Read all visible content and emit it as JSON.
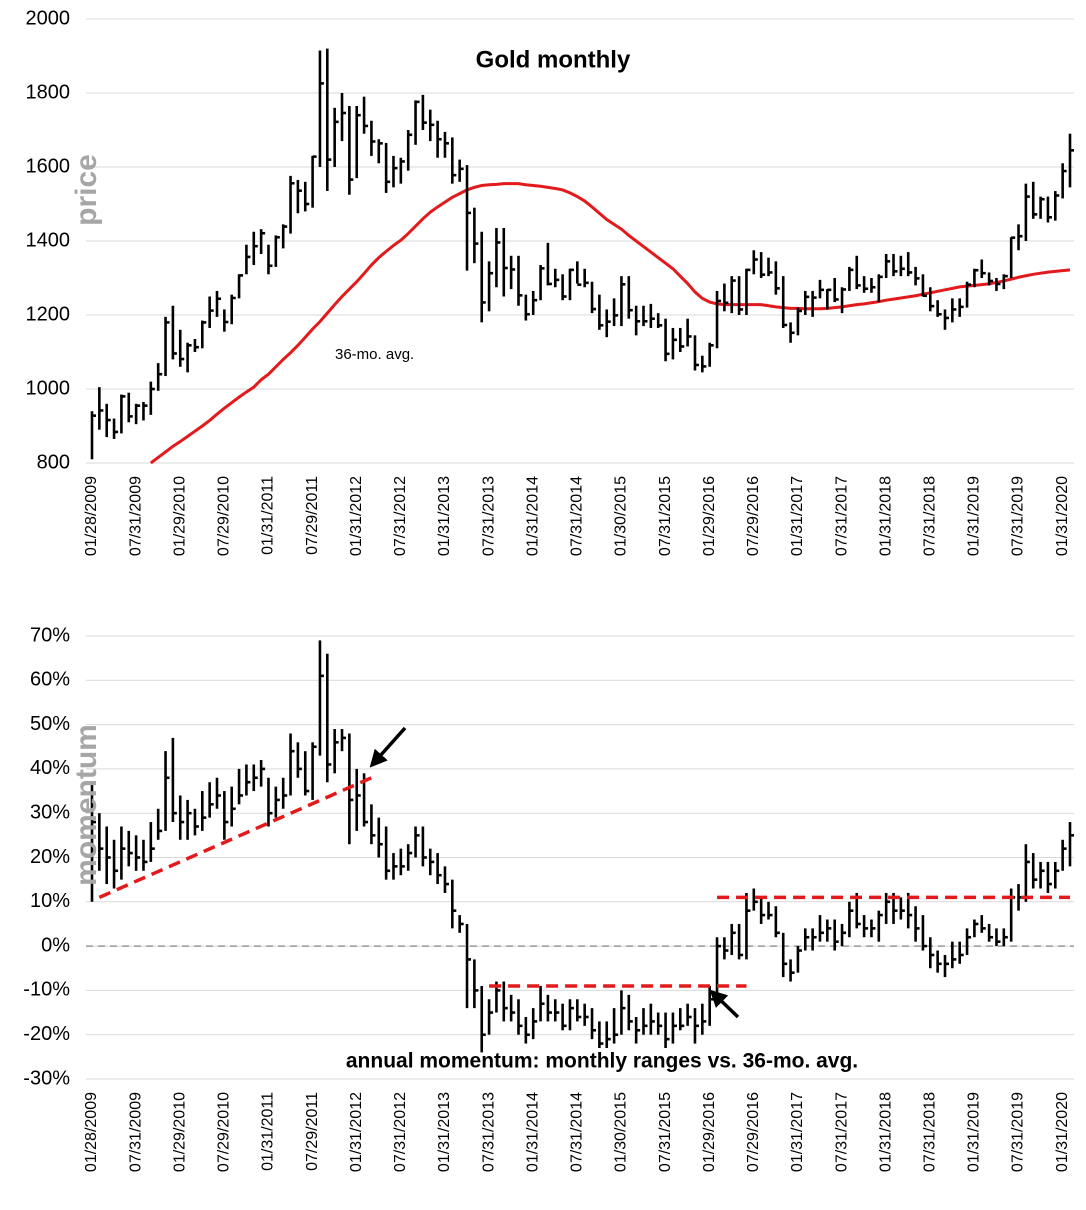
{
  "chart_data": [
    {
      "type": "ohlc",
      "title": "Gold monthly",
      "y_label": "price",
      "categories": [
        "01/28/2009",
        null,
        null,
        null,
        null,
        null,
        "07/31/2009",
        null,
        null,
        null,
        null,
        null,
        "01/29/2010",
        null,
        null,
        null,
        null,
        null,
        "07/29/2010",
        null,
        null,
        null,
        null,
        null,
        "01/31/2011",
        null,
        null,
        null,
        null,
        null,
        "07/29/2011",
        null,
        null,
        null,
        null,
        null,
        "01/31/2012",
        null,
        null,
        null,
        null,
        null,
        "07/31/2012",
        null,
        null,
        null,
        null,
        null,
        "01/31/2013",
        null,
        null,
        null,
        null,
        null,
        "07/31/2013",
        null,
        null,
        null,
        null,
        null,
        "01/31/2014",
        null,
        null,
        null,
        null,
        null,
        "07/31/2014",
        null,
        null,
        null,
        null,
        null,
        "01/30/2015",
        null,
        null,
        null,
        null,
        null,
        "07/31/2015",
        null,
        null,
        null,
        null,
        null,
        "01/29/2016",
        null,
        null,
        null,
        null,
        null,
        "07/29/2016",
        null,
        null,
        null,
        null,
        null,
        "01/31/2017",
        null,
        null,
        null,
        null,
        null,
        "07/31/2017",
        null,
        null,
        null,
        null,
        null,
        "01/31/2018",
        null,
        null,
        null,
        null,
        null,
        "07/31/2018",
        null,
        null,
        null,
        null,
        null,
        "01/31/2019",
        null,
        null,
        null,
        null,
        null,
        "07/31/2019",
        null,
        null,
        null,
        null,
        null,
        "01/31/2020",
        null
      ],
      "high": [
        940,
        1005,
        960,
        920,
        985,
        990,
        960,
        965,
        1020,
        1070,
        1195,
        1225,
        1160,
        1125,
        1135,
        1185,
        1250,
        1265,
        1215,
        1255,
        1310,
        1390,
        1425,
        1432,
        1390,
        1415,
        1445,
        1576,
        1565,
        1560,
        1630,
        1915,
        1920,
        1760,
        1800,
        1765,
        1765,
        1790,
        1725,
        1675,
        1665,
        1630,
        1625,
        1700,
        1780,
        1795,
        1755,
        1725,
        1695,
        1680,
        1620,
        1605,
        1490,
        1425,
        1345,
        1435,
        1435,
        1360,
        1360,
        1255,
        1265,
        1335,
        1395,
        1325,
        1310,
        1325,
        1345,
        1325,
        1290,
        1255,
        1215,
        1245,
        1305,
        1305,
        1225,
        1225,
        1230,
        1205,
        1190,
        1165,
        1165,
        1190,
        1145,
        1090,
        1125,
        1265,
        1285,
        1305,
        1305,
        1325,
        1375,
        1370,
        1355,
        1345,
        1305,
        1180,
        1220,
        1265,
        1265,
        1295,
        1270,
        1300,
        1275,
        1330,
        1360,
        1305,
        1300,
        1310,
        1365,
        1365,
        1360,
        1370,
        1330,
        1310,
        1275,
        1240,
        1215,
        1245,
        1245,
        1290,
        1325,
        1350,
        1315,
        1300,
        1310,
        1410,
        1445,
        1555,
        1560,
        1520,
        1520,
        1535,
        1610,
        1690
      ],
      "low": [
        810,
        890,
        870,
        865,
        880,
        910,
        905,
        915,
        930,
        995,
        1035,
        1080,
        1060,
        1045,
        1100,
        1110,
        1165,
        1195,
        1155,
        1175,
        1245,
        1310,
        1335,
        1365,
        1310,
        1330,
        1380,
        1420,
        1475,
        1480,
        1490,
        1600,
        1535,
        1600,
        1670,
        1525,
        1570,
        1690,
        1630,
        1610,
        1530,
        1545,
        1555,
        1590,
        1660,
        1700,
        1670,
        1625,
        1625,
        1555,
        1560,
        1320,
        1340,
        1180,
        1210,
        1275,
        1250,
        1270,
        1225,
        1185,
        1200,
        1240,
        1280,
        1275,
        1240,
        1240,
        1285,
        1275,
        1205,
        1160,
        1140,
        1170,
        1170,
        1190,
        1145,
        1170,
        1165,
        1165,
        1075,
        1080,
        1100,
        1115,
        1050,
        1045,
        1060,
        1110,
        1210,
        1205,
        1200,
        1200,
        1310,
        1300,
        1305,
        1255,
        1165,
        1125,
        1145,
        1200,
        1195,
        1245,
        1215,
        1235,
        1205,
        1265,
        1270,
        1260,
        1260,
        1235,
        1300,
        1305,
        1305,
        1305,
        1280,
        1250,
        1210,
        1195,
        1160,
        1180,
        1195,
        1220,
        1275,
        1300,
        1280,
        1265,
        1270,
        1300,
        1375,
        1400,
        1460,
        1460,
        1450,
        1455,
        1515,
        1545
      ],
      "close": [
        928,
        942,
        916,
        884,
        980,
        926,
        955,
        955,
        1000,
        1040,
        1180,
        1096,
        1081,
        1118,
        1113,
        1180,
        1212,
        1244,
        1181,
        1246,
        1307,
        1357,
        1386,
        1421,
        1333,
        1410,
        1439,
        1556,
        1536,
        1500,
        1628,
        1826,
        1620,
        1722,
        1746,
        1566,
        1740,
        1711,
        1669,
        1664,
        1560,
        1597,
        1615,
        1687,
        1776,
        1720,
        1714,
        1675,
        1664,
        1578,
        1595,
        1476,
        1393,
        1234,
        1313,
        1396,
        1327,
        1323,
        1253,
        1202,
        1240,
        1326,
        1284,
        1295,
        1250,
        1322,
        1282,
        1287,
        1216,
        1172,
        1182,
        1199,
        1283,
        1213,
        1183,
        1183,
        1190,
        1172,
        1095,
        1133,
        1115,
        1142,
        1065,
        1061,
        1118,
        1238,
        1233,
        1293,
        1215,
        1322,
        1350,
        1309,
        1315,
        1272,
        1173,
        1152,
        1211,
        1249,
        1247,
        1268,
        1268,
        1242,
        1269,
        1322,
        1280,
        1271,
        1275,
        1303,
        1345,
        1318,
        1325,
        1315,
        1299,
        1252,
        1224,
        1202,
        1192,
        1215,
        1222,
        1282,
        1321,
        1313,
        1292,
        1284,
        1305,
        1409,
        1413,
        1520,
        1472,
        1513,
        1464,
        1523,
        1589,
        1645
      ],
      "moving_average": {
        "label": "36-mo. avg.",
        "color": "#e31a1c",
        "values": [
          null,
          null,
          null,
          null,
          null,
          null,
          null,
          null,
          800,
          815,
          830,
          845,
          858,
          872,
          886,
          900,
          915,
          932,
          948,
          963,
          978,
          992,
          1005,
          1025,
          1040,
          1060,
          1080,
          1098,
          1118,
          1140,
          1162,
          1182,
          1205,
          1228,
          1250,
          1270,
          1290,
          1312,
          1335,
          1355,
          1372,
          1388,
          1402,
          1420,
          1440,
          1460,
          1478,
          1492,
          1505,
          1518,
          1528,
          1538,
          1545,
          1550,
          1552,
          1553,
          1555,
          1555,
          1555,
          1552,
          1550,
          1548,
          1545,
          1542,
          1538,
          1530,
          1520,
          1508,
          1492,
          1475,
          1458,
          1445,
          1432,
          1415,
          1400,
          1385,
          1370,
          1355,
          1340,
          1325,
          1305,
          1285,
          1262,
          1245,
          1235,
          1230,
          1228,
          1228,
          1228,
          1228,
          1228,
          1228,
          1225,
          1222,
          1220,
          1218,
          1218,
          1217,
          1217,
          1217,
          1218,
          1220,
          1222,
          1225,
          1228,
          1230,
          1233,
          1236,
          1240,
          1243,
          1246,
          1249,
          1252,
          1256,
          1260,
          1264,
          1268,
          1272,
          1276,
          1278,
          1280,
          1282,
          1284,
          1288,
          1292,
          1297,
          1302,
          1306,
          1310,
          1313,
          1316,
          1318,
          1320,
          1322
        ]
      },
      "ylim": [
        800,
        2000
      ],
      "yticks": [
        800,
        1000,
        1200,
        1400,
        1600,
        1800,
        2000
      ],
      "grid": true,
      "color": "#000000"
    },
    {
      "type": "ohlc",
      "title": "annual momentum: monthly ranges vs. 36-mo. avg.",
      "y_label": "momentum",
      "categories": [
        "01/28/2009",
        null,
        null,
        null,
        null,
        null,
        "07/31/2009",
        null,
        null,
        null,
        null,
        null,
        "01/29/2010",
        null,
        null,
        null,
        null,
        null,
        "07/29/2010",
        null,
        null,
        null,
        null,
        null,
        "01/31/2011",
        null,
        null,
        null,
        null,
        null,
        "07/29/2011",
        null,
        null,
        null,
        null,
        null,
        "01/31/2012",
        null,
        null,
        null,
        null,
        null,
        "07/31/2012",
        null,
        null,
        null,
        null,
        null,
        "01/31/2013",
        null,
        null,
        null,
        null,
        null,
        "07/31/2013",
        null,
        null,
        null,
        null,
        null,
        "01/31/2014",
        null,
        null,
        null,
        null,
        null,
        "07/31/2014",
        null,
        null,
        null,
        null,
        null,
        "01/30/2015",
        null,
        null,
        null,
        null,
        null,
        "07/31/2015",
        null,
        null,
        null,
        null,
        null,
        "01/29/2016",
        null,
        null,
        null,
        null,
        null,
        "07/29/2016",
        null,
        null,
        null,
        null,
        null,
        "01/31/2017",
        null,
        null,
        null,
        null,
        null,
        "07/31/2017",
        null,
        null,
        null,
        null,
        null,
        "01/31/2018",
        null,
        null,
        null,
        null,
        null,
        "07/31/2018",
        null,
        null,
        null,
        null,
        null,
        "01/31/2019",
        null,
        null,
        null,
        null,
        null,
        "07/31/2019",
        null,
        null,
        null,
        null,
        null,
        "01/31/2020",
        null
      ],
      "high": [
        37,
        30,
        27,
        24,
        27,
        26,
        25,
        24,
        28,
        31,
        44,
        47,
        34,
        33,
        31,
        35,
        37,
        38,
        35,
        36,
        40,
        41,
        41,
        42,
        38,
        36,
        38,
        48,
        46,
        44,
        46,
        69,
        66,
        49,
        49,
        48,
        40,
        39,
        32,
        29,
        27,
        21,
        22,
        23,
        27,
        27,
        22,
        21,
        18,
        15,
        7,
        5,
        -3,
        -9,
        -12,
        -8,
        -8,
        -11,
        -12,
        -16,
        -14,
        -9,
        -11,
        -12,
        -13,
        -12,
        -12,
        -13,
        -14,
        -17,
        -17,
        -14,
        -10,
        -11,
        -16,
        -14,
        -13,
        -15,
        -15,
        -15,
        -14,
        -13,
        -14,
        -13,
        -9,
        2,
        2,
        5,
        5,
        12,
        13,
        11,
        10,
        9,
        3,
        -3,
        0,
        4,
        4,
        7,
        6,
        6,
        5,
        10,
        12,
        7,
        6,
        8,
        12,
        12,
        11,
        12,
        9,
        7,
        2,
        -1,
        -2,
        1,
        1,
        4,
        6,
        7,
        5,
        4,
        4,
        13,
        14,
        23,
        21,
        19,
        19,
        19,
        24,
        28
      ],
      "low": [
        10,
        17,
        14,
        13,
        15,
        18,
        17,
        17,
        19,
        24,
        26,
        28,
        24,
        24,
        25,
        26,
        29,
        31,
        24,
        27,
        32,
        34,
        35,
        36,
        27,
        29,
        31,
        34,
        38,
        34,
        33,
        43,
        37,
        39,
        44,
        23,
        26,
        27,
        23,
        20,
        15,
        15,
        16,
        17,
        20,
        18,
        16,
        14,
        12,
        4,
        3,
        -14,
        -14,
        -24,
        -20,
        -15,
        -17,
        -17,
        -20,
        -22,
        -21,
        -17,
        -17,
        -17,
        -19,
        -19,
        -17,
        -18,
        -21,
        -23,
        -23,
        -22,
        -20,
        -19,
        -22,
        -20,
        -20,
        -20,
        -23,
        -22,
        -19,
        -18,
        -22,
        -20,
        -18,
        -12,
        -3,
        -2,
        -3,
        -3,
        8,
        5,
        6,
        2,
        -7,
        -8,
        -6,
        -1,
        -1,
        1,
        1,
        -1,
        0,
        2,
        4,
        2,
        2,
        1,
        5,
        5,
        6,
        4,
        1,
        -1,
        -5,
        -6,
        -7,
        -5,
        -4,
        -2,
        2,
        3,
        1,
        0,
        0,
        1,
        8,
        10,
        13,
        13,
        12,
        13,
        17,
        18
      ],
      "close": [
        28,
        22,
        20,
        17,
        22,
        21,
        20,
        19,
        22,
        26,
        38,
        30,
        28,
        30,
        27,
        29,
        32,
        34,
        28,
        31,
        34,
        37,
        38,
        40,
        30,
        33,
        34,
        44,
        40,
        35,
        45,
        61,
        41,
        46,
        47,
        33,
        34,
        28,
        25,
        23,
        17,
        18,
        18,
        21,
        25,
        20,
        19,
        16,
        14,
        8,
        5,
        -3,
        -10,
        -20,
        -15,
        -10,
        -14,
        -15,
        -18,
        -20,
        -17,
        -13,
        -15,
        -15,
        -18,
        -14,
        -16,
        -16,
        -19,
        -22,
        -21,
        -20,
        -14,
        -17,
        -19,
        -18,
        -17,
        -18,
        -21,
        -18,
        -18,
        -16,
        -18,
        -17,
        -12,
        0,
        -1,
        3,
        -2,
        8,
        10,
        7,
        7,
        3,
        -4,
        -6,
        -1,
        2,
        2,
        3,
        4,
        1,
        3,
        8,
        5,
        4,
        4,
        7,
        10,
        8,
        8,
        7,
        4,
        0,
        -2,
        -4,
        -4,
        -3,
        -2,
        2,
        5,
        4,
        2,
        1,
        2,
        11,
        11,
        19,
        15,
        17,
        14,
        17,
        22,
        25
      ],
      "reference_line": 0,
      "trendlines": [
        {
          "x": [
            1,
            38
          ],
          "y": [
            11,
            38
          ]
        },
        {
          "x": [
            54,
            89
          ],
          "y": [
            -9,
            -9
          ]
        },
        {
          "x": [
            85,
            133
          ],
          "y": [
            11,
            11
          ]
        }
      ],
      "trendline_color": "#e31a1c",
      "ylim": [
        -30,
        70
      ],
      "yticks": [
        {
          "value": -30,
          "label": "-30%"
        },
        {
          "value": -20,
          "label": "-20%"
        },
        {
          "value": -10,
          "label": "-10%"
        },
        {
          "value": 0,
          "label": "0%"
        },
        {
          "value": 10,
          "label": "10%"
        },
        {
          "value": 20,
          "label": "20%"
        },
        {
          "value": 30,
          "label": "30%"
        },
        {
          "value": 40,
          "label": "40%"
        },
        {
          "value": 50,
          "label": "50%"
        },
        {
          "value": 60,
          "label": "60%"
        },
        {
          "value": 70,
          "label": "70%"
        }
      ],
      "grid": true,
      "color": "#000000"
    }
  ]
}
